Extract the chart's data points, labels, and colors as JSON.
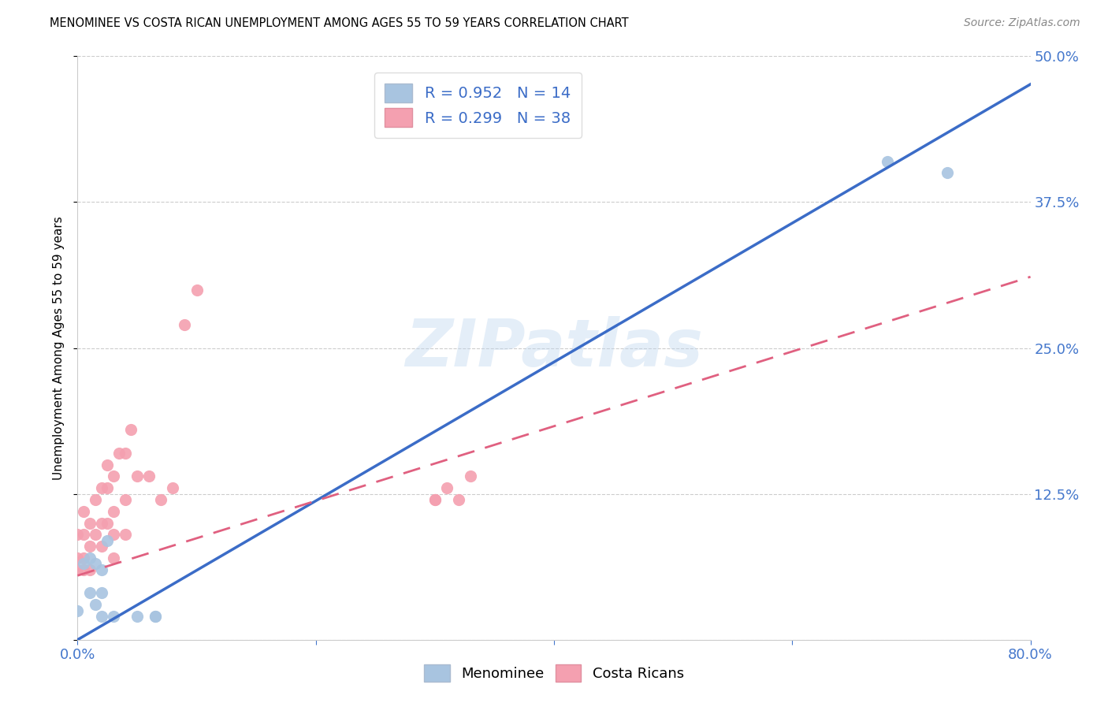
{
  "title": "MENOMINEE VS COSTA RICAN UNEMPLOYMENT AMONG AGES 55 TO 59 YEARS CORRELATION CHART",
  "source": "Source: ZipAtlas.com",
  "ylabel": "Unemployment Among Ages 55 to 59 years",
  "xlim": [
    0.0,
    0.8
  ],
  "ylim": [
    0.0,
    0.5
  ],
  "xticks": [
    0.0,
    0.2,
    0.4,
    0.6,
    0.8
  ],
  "xticklabels": [
    "0.0%",
    "",
    "",
    "",
    "80.0%"
  ],
  "yticks": [
    0.0,
    0.125,
    0.25,
    0.375,
    0.5
  ],
  "yticklabels": [
    "",
    "12.5%",
    "25.0%",
    "37.5%",
    "50.0%"
  ],
  "watermark": "ZIPatlas",
  "blue_color": "#A8C4E0",
  "pink_color": "#F4A0B0",
  "blue_line_color": "#3B6CC7",
  "pink_line_color": "#E06080",
  "menominee_x": [
    0.0,
    0.005,
    0.01,
    0.01,
    0.015,
    0.015,
    0.02,
    0.02,
    0.02,
    0.025,
    0.03,
    0.05,
    0.065,
    0.065,
    0.68,
    0.73
  ],
  "menominee_y": [
    0.025,
    0.065,
    0.04,
    0.07,
    0.03,
    0.065,
    0.04,
    0.02,
    0.06,
    0.085,
    0.02,
    0.02,
    0.02,
    0.02,
    0.41,
    0.4
  ],
  "costa_rican_x": [
    0.0,
    0.0,
    0.0,
    0.005,
    0.005,
    0.005,
    0.005,
    0.01,
    0.01,
    0.01,
    0.015,
    0.015,
    0.02,
    0.02,
    0.02,
    0.025,
    0.025,
    0.025,
    0.03,
    0.03,
    0.03,
    0.03,
    0.035,
    0.04,
    0.04,
    0.04,
    0.045,
    0.05,
    0.06,
    0.07,
    0.08,
    0.09,
    0.1,
    0.3,
    0.3,
    0.31,
    0.32,
    0.33
  ],
  "costa_rican_y": [
    0.06,
    0.07,
    0.09,
    0.06,
    0.07,
    0.09,
    0.11,
    0.06,
    0.08,
    0.1,
    0.09,
    0.12,
    0.08,
    0.1,
    0.13,
    0.1,
    0.13,
    0.15,
    0.07,
    0.09,
    0.11,
    0.14,
    0.16,
    0.09,
    0.12,
    0.16,
    0.18,
    0.14,
    0.14,
    0.12,
    0.13,
    0.27,
    0.3,
    0.12,
    0.12,
    0.13,
    0.12,
    0.14
  ],
  "blue_intercept": 0.0,
  "blue_slope": 0.595,
  "pink_intercept": 0.055,
  "pink_slope": 0.32,
  "grid_color": "#CCCCCC",
  "background_color": "#FFFFFF",
  "title_fontsize": 10.5,
  "axis_color": "#4477CC",
  "legend_text_color": "#3B6CC7"
}
